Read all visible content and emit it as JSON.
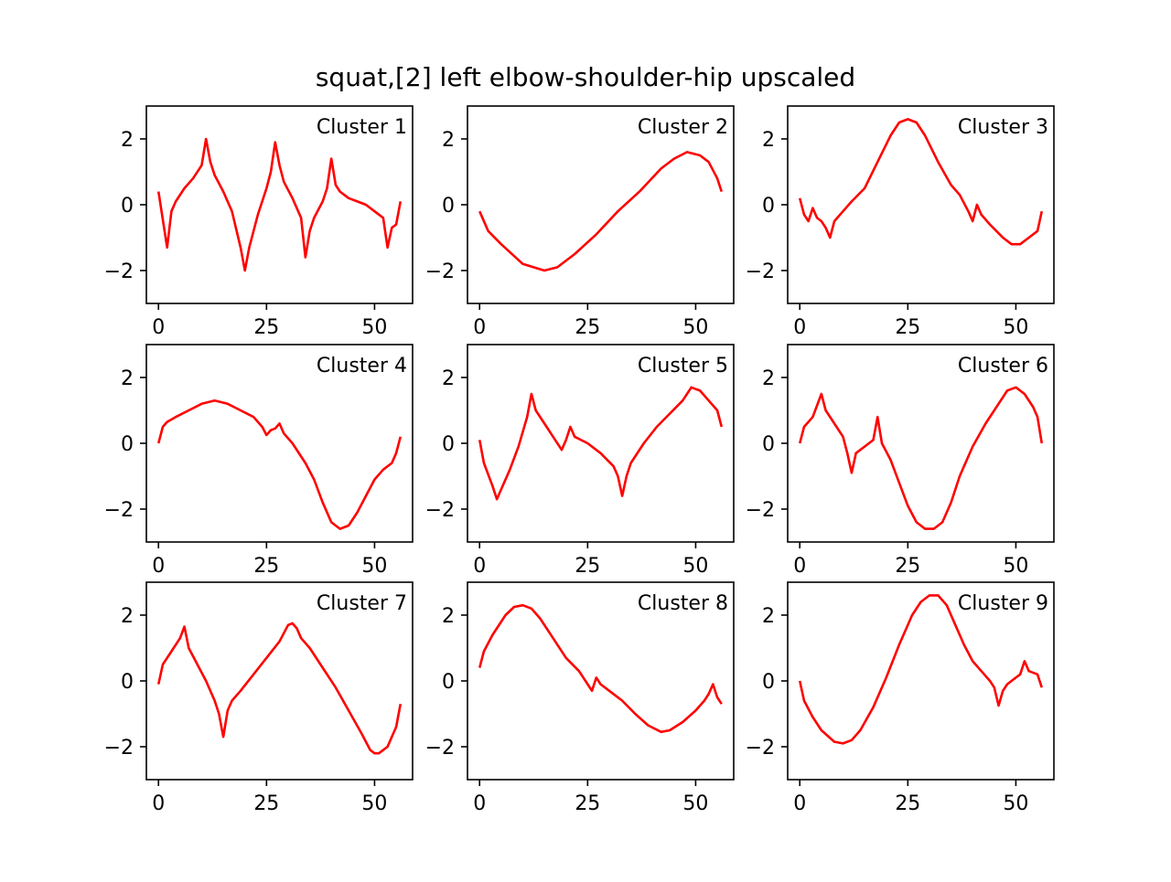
{
  "figure": {
    "title": "squat,[2] left elbow-shoulder-hip upscaled"
  },
  "chart_data": [
    {
      "type": "line",
      "title": "Cluster 1",
      "color": "#ff0000",
      "xlim": [
        -2.8,
        58.8
      ],
      "ylim": [
        -3,
        3
      ],
      "xticks": [
        "0",
        "25",
        "50"
      ],
      "yticks": [
        "−2",
        "0",
        "2"
      ],
      "points": [
        [
          0,
          0.4
        ],
        [
          2,
          -1.3
        ],
        [
          3,
          -0.2
        ],
        [
          4,
          0.1
        ],
        [
          6,
          0.5
        ],
        [
          8,
          0.8
        ],
        [
          10,
          1.2
        ],
        [
          11,
          2.0
        ],
        [
          12,
          1.3
        ],
        [
          13,
          0.9
        ],
        [
          15,
          0.4
        ],
        [
          17,
          -0.2
        ],
        [
          19,
          -1.3
        ],
        [
          20,
          -2.0
        ],
        [
          21,
          -1.3
        ],
        [
          23,
          -0.3
        ],
        [
          25,
          0.5
        ],
        [
          26,
          1.0
        ],
        [
          27,
          1.9
        ],
        [
          28,
          1.2
        ],
        [
          29,
          0.7
        ],
        [
          31,
          0.2
        ],
        [
          33,
          -0.4
        ],
        [
          34,
          -1.6
        ],
        [
          35,
          -0.8
        ],
        [
          36,
          -0.4
        ],
        [
          38,
          0.1
        ],
        [
          39,
          0.5
        ],
        [
          40,
          1.4
        ],
        [
          41,
          0.6
        ],
        [
          42,
          0.4
        ],
        [
          44,
          0.2
        ],
        [
          46,
          0.1
        ],
        [
          48,
          0.0
        ],
        [
          50,
          -0.2
        ],
        [
          52,
          -0.4
        ],
        [
          53,
          -1.3
        ],
        [
          54,
          -0.7
        ],
        [
          55,
          -0.6
        ],
        [
          56,
          0.1
        ]
      ]
    },
    {
      "type": "line",
      "title": "Cluster 2",
      "color": "#ff0000",
      "xlim": [
        -2.8,
        58.8
      ],
      "ylim": [
        -3,
        3
      ],
      "xticks": [
        "0",
        "25",
        "50"
      ],
      "yticks": [
        "−2",
        "0",
        "2"
      ],
      "points": [
        [
          0,
          -0.2
        ],
        [
          2,
          -0.8
        ],
        [
          5,
          -1.2
        ],
        [
          10,
          -1.8
        ],
        [
          15,
          -2.0
        ],
        [
          18,
          -1.9
        ],
        [
          22,
          -1.5
        ],
        [
          27,
          -0.9
        ],
        [
          32,
          -0.2
        ],
        [
          37,
          0.4
        ],
        [
          42,
          1.1
        ],
        [
          45,
          1.4
        ],
        [
          48,
          1.6
        ],
        [
          51,
          1.5
        ],
        [
          53,
          1.3
        ],
        [
          55,
          0.8
        ],
        [
          56,
          0.4
        ]
      ]
    },
    {
      "type": "line",
      "title": "Cluster 3",
      "color": "#ff0000",
      "xlim": [
        -2.8,
        58.8
      ],
      "ylim": [
        -3,
        3
      ],
      "xticks": [
        "0",
        "25",
        "50"
      ],
      "yticks": [
        "−2",
        "0",
        "2"
      ],
      "points": [
        [
          0,
          0.2
        ],
        [
          1,
          -0.3
        ],
        [
          2,
          -0.5
        ],
        [
          3,
          -0.1
        ],
        [
          4,
          -0.4
        ],
        [
          5,
          -0.5
        ],
        [
          6,
          -0.7
        ],
        [
          7,
          -1.0
        ],
        [
          8,
          -0.5
        ],
        [
          10,
          -0.2
        ],
        [
          12,
          0.1
        ],
        [
          15,
          0.5
        ],
        [
          18,
          1.3
        ],
        [
          21,
          2.1
        ],
        [
          23,
          2.5
        ],
        [
          25,
          2.6
        ],
        [
          27,
          2.5
        ],
        [
          29,
          2.1
        ],
        [
          32,
          1.3
        ],
        [
          35,
          0.6
        ],
        [
          37,
          0.3
        ],
        [
          39,
          -0.2
        ],
        [
          40,
          -0.5
        ],
        [
          41,
          0.0
        ],
        [
          42,
          -0.3
        ],
        [
          44,
          -0.6
        ],
        [
          47,
          -1.0
        ],
        [
          49,
          -1.2
        ],
        [
          51,
          -1.2
        ],
        [
          53,
          -1.0
        ],
        [
          55,
          -0.8
        ],
        [
          56,
          -0.2
        ]
      ]
    },
    {
      "type": "line",
      "title": "Cluster 4",
      "color": "#ff0000",
      "xlim": [
        -2.8,
        58.8
      ],
      "ylim": [
        -3,
        3
      ],
      "xticks": [
        "0",
        "25",
        "50"
      ],
      "yticks": [
        "−2",
        "0",
        "2"
      ],
      "points": [
        [
          0,
          0.0
        ],
        [
          1,
          0.5
        ],
        [
          2,
          0.65
        ],
        [
          4,
          0.8
        ],
        [
          7,
          1.0
        ],
        [
          10,
          1.2
        ],
        [
          13,
          1.3
        ],
        [
          16,
          1.2
        ],
        [
          19,
          1.0
        ],
        [
          22,
          0.8
        ],
        [
          24,
          0.5
        ],
        [
          25,
          0.25
        ],
        [
          26,
          0.4
        ],
        [
          27,
          0.45
        ],
        [
          28,
          0.6
        ],
        [
          29,
          0.3
        ],
        [
          31,
          0.0
        ],
        [
          34,
          -0.6
        ],
        [
          36,
          -1.1
        ],
        [
          38,
          -1.8
        ],
        [
          40,
          -2.4
        ],
        [
          42,
          -2.6
        ],
        [
          44,
          -2.5
        ],
        [
          46,
          -2.1
        ],
        [
          48,
          -1.6
        ],
        [
          50,
          -1.1
        ],
        [
          52,
          -0.8
        ],
        [
          54,
          -0.6
        ],
        [
          55,
          -0.3
        ],
        [
          56,
          0.2
        ]
      ]
    },
    {
      "type": "line",
      "title": "Cluster 5",
      "color": "#ff0000",
      "xlim": [
        -2.8,
        58.8
      ],
      "ylim": [
        -3,
        3
      ],
      "xticks": [
        "0",
        "25",
        "50"
      ],
      "yticks": [
        "−2",
        "0",
        "2"
      ],
      "points": [
        [
          0,
          0.1
        ],
        [
          1,
          -0.6
        ],
        [
          3,
          -1.3
        ],
        [
          4,
          -1.7
        ],
        [
          5,
          -1.4
        ],
        [
          7,
          -0.8
        ],
        [
          9,
          -0.1
        ],
        [
          11,
          0.8
        ],
        [
          12,
          1.5
        ],
        [
          13,
          1.0
        ],
        [
          15,
          0.6
        ],
        [
          17,
          0.2
        ],
        [
          19,
          -0.2
        ],
        [
          20,
          0.1
        ],
        [
          21,
          0.5
        ],
        [
          22,
          0.2
        ],
        [
          25,
          0.0
        ],
        [
          28,
          -0.3
        ],
        [
          31,
          -0.7
        ],
        [
          32,
          -1.0
        ],
        [
          33,
          -1.6
        ],
        [
          34,
          -1.0
        ],
        [
          35,
          -0.6
        ],
        [
          38,
          0.0
        ],
        [
          41,
          0.5
        ],
        [
          44,
          0.9
        ],
        [
          47,
          1.3
        ],
        [
          49,
          1.7
        ],
        [
          51,
          1.6
        ],
        [
          53,
          1.3
        ],
        [
          55,
          1.0
        ],
        [
          56,
          0.5
        ]
      ]
    },
    {
      "type": "line",
      "title": "Cluster 6",
      "color": "#ff0000",
      "xlim": [
        -2.8,
        58.8
      ],
      "ylim": [
        -3,
        3
      ],
      "xticks": [
        "0",
        "25",
        "50"
      ],
      "yticks": [
        "−2",
        "0",
        "2"
      ],
      "points": [
        [
          0,
          0.0
        ],
        [
          1,
          0.5
        ],
        [
          3,
          0.8
        ],
        [
          5,
          1.5
        ],
        [
          6,
          1.0
        ],
        [
          8,
          0.6
        ],
        [
          10,
          0.2
        ],
        [
          11,
          -0.3
        ],
        [
          12,
          -0.9
        ],
        [
          13,
          -0.3
        ],
        [
          15,
          -0.1
        ],
        [
          17,
          0.1
        ],
        [
          18,
          0.8
        ],
        [
          19,
          0.0
        ],
        [
          21,
          -0.5
        ],
        [
          23,
          -1.2
        ],
        [
          25,
          -1.9
        ],
        [
          27,
          -2.4
        ],
        [
          29,
          -2.6
        ],
        [
          31,
          -2.6
        ],
        [
          33,
          -2.4
        ],
        [
          35,
          -1.8
        ],
        [
          37,
          -1.0
        ],
        [
          40,
          -0.1
        ],
        [
          43,
          0.6
        ],
        [
          46,
          1.2
        ],
        [
          48,
          1.6
        ],
        [
          50,
          1.7
        ],
        [
          52,
          1.5
        ],
        [
          54,
          1.1
        ],
        [
          55,
          0.8
        ],
        [
          56,
          0.0
        ]
      ]
    },
    {
      "type": "line",
      "title": "Cluster 7",
      "color": "#ff0000",
      "xlim": [
        -2.8,
        58.8
      ],
      "ylim": [
        -3,
        3
      ],
      "xticks": [
        "0",
        "25",
        "50"
      ],
      "yticks": [
        "−2",
        "0",
        "2"
      ],
      "points": [
        [
          0,
          -0.1
        ],
        [
          1,
          0.5
        ],
        [
          3,
          0.9
        ],
        [
          5,
          1.3
        ],
        [
          6,
          1.65
        ],
        [
          7,
          1.0
        ],
        [
          9,
          0.5
        ],
        [
          11,
          0.0
        ],
        [
          13,
          -0.6
        ],
        [
          14,
          -1.0
        ],
        [
          15,
          -1.7
        ],
        [
          16,
          -0.9
        ],
        [
          17,
          -0.6
        ],
        [
          19,
          -0.3
        ],
        [
          22,
          0.2
        ],
        [
          25,
          0.7
        ],
        [
          28,
          1.2
        ],
        [
          30,
          1.7
        ],
        [
          31,
          1.75
        ],
        [
          32,
          1.6
        ],
        [
          33,
          1.3
        ],
        [
          35,
          1.0
        ],
        [
          38,
          0.4
        ],
        [
          41,
          -0.2
        ],
        [
          44,
          -0.9
        ],
        [
          47,
          -1.6
        ],
        [
          49,
          -2.1
        ],
        [
          50,
          -2.2
        ],
        [
          51,
          -2.2
        ],
        [
          53,
          -2.0
        ],
        [
          55,
          -1.4
        ],
        [
          56,
          -0.7
        ]
      ]
    },
    {
      "type": "line",
      "title": "Cluster 8",
      "color": "#ff0000",
      "xlim": [
        -2.8,
        58.8
      ],
      "ylim": [
        -3,
        3
      ],
      "xticks": [
        "0",
        "25",
        "50"
      ],
      "yticks": [
        "−2",
        "0",
        "2"
      ],
      "points": [
        [
          0,
          0.4
        ],
        [
          1,
          0.9
        ],
        [
          3,
          1.4
        ],
        [
          6,
          2.0
        ],
        [
          8,
          2.25
        ],
        [
          10,
          2.3
        ],
        [
          12,
          2.2
        ],
        [
          14,
          1.9
        ],
        [
          17,
          1.3
        ],
        [
          20,
          0.7
        ],
        [
          23,
          0.3
        ],
        [
          25,
          -0.1
        ],
        [
          26,
          -0.3
        ],
        [
          27,
          0.1
        ],
        [
          28,
          -0.1
        ],
        [
          30,
          -0.3
        ],
        [
          33,
          -0.6
        ],
        [
          36,
          -1.0
        ],
        [
          39,
          -1.35
        ],
        [
          42,
          -1.55
        ],
        [
          44,
          -1.5
        ],
        [
          47,
          -1.25
        ],
        [
          50,
          -0.9
        ],
        [
          52,
          -0.6
        ],
        [
          53,
          -0.4
        ],
        [
          54,
          -0.1
        ],
        [
          55,
          -0.5
        ],
        [
          56,
          -0.7
        ]
      ]
    },
    {
      "type": "line",
      "title": "Cluster 9",
      "color": "#ff0000",
      "xlim": [
        -2.8,
        58.8
      ],
      "ylim": [
        -3,
        3
      ],
      "xticks": [
        "0",
        "25",
        "50"
      ],
      "yticks": [
        "−2",
        "0",
        "2"
      ],
      "points": [
        [
          0,
          0.0
        ],
        [
          1,
          -0.6
        ],
        [
          3,
          -1.1
        ],
        [
          5,
          -1.5
        ],
        [
          8,
          -1.85
        ],
        [
          10,
          -1.9
        ],
        [
          12,
          -1.8
        ],
        [
          14,
          -1.5
        ],
        [
          17,
          -0.8
        ],
        [
          20,
          0.1
        ],
        [
          23,
          1.1
        ],
        [
          26,
          2.0
        ],
        [
          28,
          2.4
        ],
        [
          30,
          2.6
        ],
        [
          32,
          2.6
        ],
        [
          34,
          2.3
        ],
        [
          36,
          1.7
        ],
        [
          38,
          1.1
        ],
        [
          40,
          0.6
        ],
        [
          42,
          0.3
        ],
        [
          44,
          0.0
        ],
        [
          45,
          -0.2
        ],
        [
          46,
          -0.75
        ],
        [
          47,
          -0.3
        ],
        [
          48,
          -0.1
        ],
        [
          50,
          0.1
        ],
        [
          51,
          0.2
        ],
        [
          52,
          0.6
        ],
        [
          53,
          0.3
        ],
        [
          55,
          0.2
        ],
        [
          56,
          -0.2
        ]
      ]
    }
  ]
}
